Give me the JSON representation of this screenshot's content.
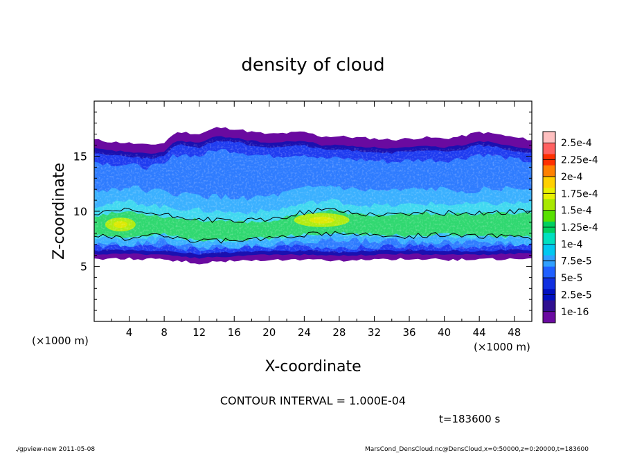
{
  "chart_data": {
    "type": "heatmap",
    "title": "density of cloud",
    "xlabel": "X-coordinate",
    "ylabel": "Z-coordinate",
    "x_unit_left": "(×1000 m)",
    "x_unit_right": "(×1000 m)",
    "xlim": [
      0,
      50
    ],
    "ylim": [
      0,
      20
    ],
    "x_ticks": [
      4,
      8,
      12,
      16,
      20,
      24,
      28,
      32,
      36,
      40,
      44,
      48
    ],
    "y_ticks": [
      5,
      10,
      15
    ],
    "colorbar": {
      "labels": [
        "2.5e-4",
        "2.25e-4",
        "2e-4",
        "1.75e-4",
        "1.5e-4",
        "1.25e-4",
        "1e-4",
        "7.5e-5",
        "5e-5",
        "2.5e-5",
        "1e-16"
      ],
      "colors": [
        "#ffc0c0",
        "#ff6060",
        "#ff3000",
        "#ff8000",
        "#ffd000",
        "#e8f000",
        "#a8e800",
        "#58e000",
        "#00d060",
        "#00e0c0",
        "#00c8f0",
        "#30a0ff",
        "#2060ff",
        "#1030e0",
        "#0010c0",
        "#301090",
        "#6a0aa0"
      ]
    },
    "cloud_top_z": [
      [
        0,
        16.5
      ],
      [
        2,
        16.3
      ],
      [
        4,
        16.2
      ],
      [
        6,
        16.0
      ],
      [
        8,
        16.2
      ],
      [
        9,
        17.0
      ],
      [
        10,
        17.2
      ],
      [
        12,
        17.0
      ],
      [
        14,
        17.6
      ],
      [
        16,
        17.5
      ],
      [
        18,
        17.2
      ],
      [
        20,
        17.0
      ],
      [
        22,
        17.1
      ],
      [
        24,
        17.2
      ],
      [
        26,
        16.8
      ],
      [
        28,
        16.8
      ],
      [
        30,
        16.7
      ],
      [
        32,
        16.6
      ],
      [
        34,
        16.5
      ],
      [
        36,
        16.6
      ],
      [
        38,
        16.7
      ],
      [
        40,
        16.6
      ],
      [
        42,
        16.8
      ],
      [
        44,
        17.2
      ],
      [
        46,
        17.0
      ],
      [
        48,
        16.7
      ],
      [
        50,
        16.5
      ]
    ],
    "cloud_bottom_z": [
      [
        0,
        5.6
      ],
      [
        4,
        5.7
      ],
      [
        8,
        5.6
      ],
      [
        12,
        5.3
      ],
      [
        16,
        5.5
      ],
      [
        20,
        5.6
      ],
      [
        24,
        5.6
      ],
      [
        28,
        5.5
      ],
      [
        32,
        5.6
      ],
      [
        36,
        5.7
      ],
      [
        40,
        5.6
      ],
      [
        44,
        5.6
      ],
      [
        48,
        5.7
      ],
      [
        50,
        5.7
      ]
    ],
    "dense_layer_upper_z": [
      [
        0,
        9.6
      ],
      [
        4,
        10.0
      ],
      [
        8,
        9.5
      ],
      [
        12,
        9.2
      ],
      [
        16,
        9.0
      ],
      [
        20,
        9.1
      ],
      [
        24,
        9.8
      ],
      [
        27,
        10.1
      ],
      [
        30,
        9.7
      ],
      [
        34,
        9.6
      ],
      [
        38,
        9.8
      ],
      [
        42,
        9.7
      ],
      [
        46,
        9.8
      ],
      [
        50,
        9.9
      ]
    ],
    "dense_layer_lower_z": [
      [
        0,
        7.8
      ],
      [
        4,
        7.6
      ],
      [
        8,
        7.9
      ],
      [
        12,
        7.3
      ],
      [
        16,
        7.4
      ],
      [
        20,
        7.6
      ],
      [
        24,
        7.9
      ],
      [
        28,
        8.0
      ],
      [
        32,
        7.9
      ],
      [
        36,
        7.8
      ],
      [
        40,
        7.9
      ],
      [
        44,
        7.8
      ],
      [
        48,
        7.7
      ],
      [
        50,
        7.7
      ]
    ],
    "peak_regions": [
      {
        "x": 3,
        "z": 8.8,
        "level": 1.5
      },
      {
        "x": 26,
        "z": 9.2,
        "level": 1.5
      }
    ]
  },
  "contour_interval": "CONTOUR INTERVAL = 1.000E-04",
  "time_label": "t=183600 s",
  "footer_left": "./gpview-new   2011-05-08",
  "footer_right": "MarsCond_DensCloud.nc@DensCloud,x=0:50000,z=0:20000,t=183600"
}
